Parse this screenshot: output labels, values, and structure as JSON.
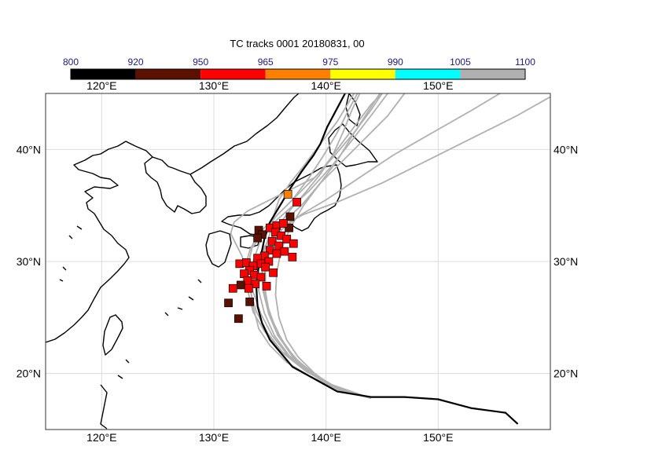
{
  "title": "TC tracks  0001 20180831, 00",
  "colorbar": {
    "labels": [
      "800",
      "920",
      "950",
      "965",
      "975",
      "990",
      "1005",
      "1100"
    ],
    "colors": [
      "#000000",
      "#5c1000",
      "#ff0000",
      "#ff8000",
      "#ffff00",
      "#00ffff",
      "#b0b0b0"
    ]
  },
  "map": {
    "lon_range": [
      115,
      160
    ],
    "lat_range": [
      15,
      45
    ],
    "x_ticks": [
      "120°E",
      "130°E",
      "140°E",
      "150°E"
    ],
    "y_ticks": [
      "20°N",
      "30°N",
      "40°N"
    ],
    "grid": true,
    "track_color_members": "#b0b0b0",
    "track_color_main": "#000000"
  },
  "chart_data": {
    "type": "scatter",
    "title": "TC tracks  0001 20180831, 00",
    "main_track": [
      [
        157.1,
        15.5
      ],
      [
        156,
        16.5
      ],
      [
        153,
        16.9
      ],
      [
        150,
        17.7
      ],
      [
        147,
        17.9
      ],
      [
        144,
        17.9
      ],
      [
        141,
        18.4
      ],
      [
        139,
        19.5
      ],
      [
        137,
        20.6
      ],
      [
        136,
        21.8
      ],
      [
        135,
        23
      ],
      [
        134.3,
        24.5
      ],
      [
        133.9,
        26
      ],
      [
        133.8,
        27.5
      ],
      [
        133.9,
        29
      ],
      [
        134.2,
        30.5
      ],
      [
        134.5,
        32
      ],
      [
        135,
        33.5
      ],
      [
        135.9,
        35
      ],
      [
        136.8,
        36.5
      ],
      [
        137.8,
        38
      ],
      [
        138.9,
        39.5
      ],
      [
        139.5,
        40.5
      ],
      [
        140.1,
        42
      ],
      [
        140.9,
        43.5
      ],
      [
        141.7,
        45
      ]
    ],
    "ensemble_tracks": [
      [
        [
          144,
          17.8
        ],
        [
          141,
          18.6
        ],
        [
          138.5,
          19.8
        ],
        [
          136.5,
          21
        ],
        [
          135,
          22.5
        ],
        [
          134,
          24
        ],
        [
          133.5,
          26
        ],
        [
          133.2,
          28
        ],
        [
          133.5,
          30
        ],
        [
          134.2,
          32
        ],
        [
          135.5,
          34
        ],
        [
          137.5,
          36
        ],
        [
          139.5,
          38
        ],
        [
          141,
          40
        ],
        [
          142.5,
          42
        ],
        [
          144,
          44
        ],
        [
          145,
          45
        ]
      ],
      [
        [
          144,
          17.8
        ],
        [
          141,
          18.6
        ],
        [
          139,
          20
        ],
        [
          137.5,
          21.5
        ],
        [
          136.5,
          23
        ],
        [
          135.8,
          25
        ],
        [
          135.5,
          27
        ],
        [
          135.6,
          29
        ],
        [
          136,
          31
        ],
        [
          136.8,
          33
        ],
        [
          138,
          35
        ],
        [
          139.5,
          37
        ],
        [
          141,
          39
        ],
        [
          142.2,
          41
        ],
        [
          143.5,
          43
        ],
        [
          144.8,
          45
        ]
      ],
      [
        [
          144,
          17.8
        ],
        [
          140.5,
          19
        ],
        [
          138,
          20.5
        ],
        [
          136,
          22
        ],
        [
          134.5,
          23.8
        ],
        [
          133.5,
          25.5
        ],
        [
          133,
          27.5
        ],
        [
          132.8,
          29.5
        ],
        [
          133.2,
          31
        ],
        [
          134,
          32.5
        ],
        [
          135.5,
          34
        ],
        [
          137,
          35.5
        ],
        [
          138.5,
          37.5
        ],
        [
          139.8,
          39.5
        ],
        [
          141,
          41.5
        ],
        [
          142,
          43.5
        ],
        [
          142.8,
          45
        ]
      ],
      [
        [
          144,
          17.8
        ],
        [
          141.5,
          18.5
        ],
        [
          139.5,
          19.5
        ],
        [
          137.8,
          20.8
        ],
        [
          136.5,
          22.3
        ],
        [
          135.5,
          24
        ],
        [
          134.8,
          26
        ],
        [
          134.5,
          28
        ],
        [
          134.6,
          30
        ],
        [
          135.2,
          32
        ],
        [
          136.2,
          33.5
        ],
        [
          137.8,
          35
        ],
        [
          139.5,
          37
        ],
        [
          141.5,
          39
        ],
        [
          143.5,
          41
        ],
        [
          145.5,
          43
        ],
        [
          147,
          45
        ]
      ],
      [
        [
          144,
          17.8
        ],
        [
          141,
          18.7
        ],
        [
          138.8,
          20
        ],
        [
          137,
          21.5
        ],
        [
          135.8,
          23.3
        ],
        [
          135,
          25.2
        ],
        [
          134.6,
          27.2
        ],
        [
          134.6,
          29.2
        ],
        [
          135,
          31
        ],
        [
          136,
          32.8
        ],
        [
          137.8,
          34.2
        ],
        [
          140,
          35.5
        ],
        [
          143,
          37.5
        ],
        [
          146,
          39.5
        ],
        [
          149.5,
          41.5
        ],
        [
          153,
          43.5
        ],
        [
          155.5,
          45
        ]
      ],
      [
        [
          144,
          17.8
        ],
        [
          140.8,
          18.8
        ],
        [
          138.2,
          20.2
        ],
        [
          136.2,
          21.8
        ],
        [
          134.8,
          23.6
        ],
        [
          133.8,
          25.5
        ],
        [
          133.2,
          27.5
        ],
        [
          133,
          29.5
        ],
        [
          133.4,
          31.2
        ],
        [
          134.6,
          32.8
        ],
        [
          136.5,
          34.5
        ],
        [
          138.5,
          36.3
        ],
        [
          140.5,
          38.5
        ],
        [
          142.3,
          40.8
        ],
        [
          144,
          43
        ],
        [
          145.5,
          45
        ]
      ],
      [
        [
          144,
          17.8
        ],
        [
          141.2,
          18.6
        ],
        [
          139,
          19.9
        ],
        [
          137.2,
          21.4
        ],
        [
          136,
          23.1
        ],
        [
          135.1,
          25
        ],
        [
          134.5,
          27
        ],
        [
          134.3,
          29
        ],
        [
          134.5,
          31
        ],
        [
          135,
          32.5
        ],
        [
          135.3,
          34
        ],
        [
          135.8,
          35.5
        ],
        [
          136.8,
          37
        ],
        [
          138,
          38.5
        ],
        [
          139.5,
          40.5
        ],
        [
          141,
          42.5
        ],
        [
          142.5,
          45
        ]
      ],
      [
        [
          144,
          17.8
        ],
        [
          141,
          18.6
        ],
        [
          138.6,
          20
        ],
        [
          136.6,
          21.6
        ],
        [
          135.2,
          23.4
        ],
        [
          134.2,
          25.3
        ],
        [
          133.5,
          27.3
        ],
        [
          133,
          29
        ],
        [
          132.5,
          30.5
        ],
        [
          132,
          31.5
        ],
        [
          131.5,
          32.5
        ],
        [
          131.8,
          33.5
        ],
        [
          133,
          34.5
        ],
        [
          135,
          35.5
        ],
        [
          137,
          36.5
        ],
        [
          139,
          37.5
        ],
        [
          140.8,
          39.5
        ],
        [
          142.5,
          41.5
        ],
        [
          144,
          43.5
        ],
        [
          145,
          45
        ]
      ],
      [
        [
          144,
          17.8
        ],
        [
          141,
          18.6
        ],
        [
          138.6,
          20
        ],
        [
          136.7,
          21.6
        ],
        [
          135.4,
          23.4
        ],
        [
          134.5,
          25.4
        ],
        [
          134,
          27.4
        ],
        [
          134,
          29.4
        ],
        [
          134.5,
          31.3
        ],
        [
          135.8,
          33
        ],
        [
          138,
          34.2
        ],
        [
          141,
          35.3
        ],
        [
          145,
          37
        ],
        [
          149,
          39
        ],
        [
          153,
          41
        ],
        [
          157,
          43
        ],
        [
          160,
          44.7
        ]
      ],
      [
        [
          144,
          17.8
        ],
        [
          141,
          18.6
        ],
        [
          138.7,
          20
        ],
        [
          137,
          21.6
        ],
        [
          135.7,
          23.4
        ],
        [
          134.9,
          25.3
        ],
        [
          134.4,
          27.3
        ],
        [
          134.3,
          29.3
        ],
        [
          134.7,
          31.2
        ],
        [
          135.6,
          33
        ],
        [
          136.8,
          34.6
        ],
        [
          138.2,
          36.2
        ],
        [
          139.5,
          37.8
        ],
        [
          140.6,
          39.5
        ],
        [
          141.5,
          41.5
        ],
        [
          142.3,
          43.5
        ],
        [
          143,
          45
        ]
      ]
    ],
    "markers": [
      {
        "lon": 136.6,
        "lat": 36.0,
        "c": "#ff8000"
      },
      {
        "lon": 137.4,
        "lat": 35.3,
        "c": "#ff0000"
      },
      {
        "lon": 136.8,
        "lat": 34.0,
        "c": "#5c1000"
      },
      {
        "lon": 136.7,
        "lat": 33.0,
        "c": "#5c1000"
      },
      {
        "lon": 134.0,
        "lat": 32.8,
        "c": "#5c1000"
      },
      {
        "lon": 134.3,
        "lat": 32.4,
        "c": "#5c1000"
      },
      {
        "lon": 133.9,
        "lat": 32.1,
        "c": "#5c1000"
      },
      {
        "lon": 135.0,
        "lat": 33.0,
        "c": "#ff0000"
      },
      {
        "lon": 135.6,
        "lat": 33.2,
        "c": "#ff0000"
      },
      {
        "lon": 136.2,
        "lat": 33.4,
        "c": "#ff0000"
      },
      {
        "lon": 135.5,
        "lat": 32.6,
        "c": "#ff0000"
      },
      {
        "lon": 136.0,
        "lat": 32.3,
        "c": "#ff0000"
      },
      {
        "lon": 136.5,
        "lat": 32.0,
        "c": "#ff0000"
      },
      {
        "lon": 137.1,
        "lat": 31.6,
        "c": "#ff0000"
      },
      {
        "lon": 135.2,
        "lat": 31.8,
        "c": "#ff0000"
      },
      {
        "lon": 135.8,
        "lat": 31.4,
        "c": "#ff0000"
      },
      {
        "lon": 135.0,
        "lat": 31.0,
        "c": "#ff0000"
      },
      {
        "lon": 135.6,
        "lat": 30.7,
        "c": "#ff0000"
      },
      {
        "lon": 136.3,
        "lat": 30.9,
        "c": "#ff0000"
      },
      {
        "lon": 137.0,
        "lat": 30.4,
        "c": "#ff0000"
      },
      {
        "lon": 134.5,
        "lat": 30.5,
        "c": "#ff0000"
      },
      {
        "lon": 133.9,
        "lat": 30.3,
        "c": "#ff0000"
      },
      {
        "lon": 134.2,
        "lat": 29.8,
        "c": "#ff0000"
      },
      {
        "lon": 134.9,
        "lat": 30.0,
        "c": "#ff0000"
      },
      {
        "lon": 132.3,
        "lat": 29.8,
        "c": "#ff0000"
      },
      {
        "lon": 132.9,
        "lat": 29.9,
        "c": "#ff0000"
      },
      {
        "lon": 133.5,
        "lat": 29.6,
        "c": "#ff0000"
      },
      {
        "lon": 134.6,
        "lat": 29.5,
        "c": "#ff0000"
      },
      {
        "lon": 133.2,
        "lat": 29.2,
        "c": "#ff0000"
      },
      {
        "lon": 132.7,
        "lat": 28.9,
        "c": "#ff0000"
      },
      {
        "lon": 133.6,
        "lat": 28.8,
        "c": "#ff0000"
      },
      {
        "lon": 134.2,
        "lat": 28.6,
        "c": "#ff0000"
      },
      {
        "lon": 135.3,
        "lat": 29.0,
        "c": "#ff0000"
      },
      {
        "lon": 133.0,
        "lat": 28.3,
        "c": "#ff0000"
      },
      {
        "lon": 133.7,
        "lat": 28.0,
        "c": "#ff0000"
      },
      {
        "lon": 132.4,
        "lat": 27.9,
        "c": "#5c1000"
      },
      {
        "lon": 131.7,
        "lat": 27.6,
        "c": "#ff0000"
      },
      {
        "lon": 133.1,
        "lat": 27.6,
        "c": "#ff0000"
      },
      {
        "lon": 134.7,
        "lat": 27.8,
        "c": "#ff0000"
      },
      {
        "lon": 131.3,
        "lat": 26.3,
        "c": "#5c1000"
      },
      {
        "lon": 133.2,
        "lat": 26.4,
        "c": "#5c1000"
      },
      {
        "lon": 132.2,
        "lat": 24.9,
        "c": "#5c1000"
      }
    ]
  }
}
